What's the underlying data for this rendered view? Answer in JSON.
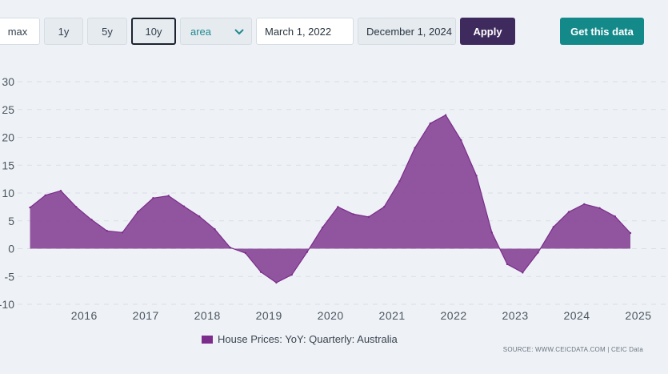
{
  "toolbar": {
    "range_buttons": [
      "max",
      "1y",
      "5y",
      "10y"
    ],
    "chart_type_value": "area",
    "date_from": "March 1, 2022",
    "date_to": "December 1, 2024",
    "apply_label": "Apply",
    "get_data_label": "Get this data"
  },
  "legend": {
    "label": "House Prices: YoY: Quarterly: Australia"
  },
  "source": "SOURCE: WWW.CEICDATA.COM | CEIC Data",
  "colors": {
    "area_fill": "#8b4c9a",
    "area_stroke": "#7c2c8a",
    "accent": "#14898a",
    "apply": "#3f2a5e"
  },
  "chart_data": {
    "type": "area",
    "title": "",
    "xlabel": "",
    "ylabel": "",
    "ylim": [
      -10,
      30
    ],
    "xlim": [
      2015.1,
      2025.0
    ],
    "yticks": [
      "30",
      "25",
      "20",
      "15",
      "10",
      "5",
      "0",
      "-5",
      "-10"
    ],
    "xticks": [
      "2016",
      "2017",
      "2018",
      "2019",
      "2020",
      "2021",
      "2022",
      "2023",
      "2024",
      "2025"
    ],
    "grid": true,
    "legend_position": "bottom",
    "series": [
      {
        "name": "House Prices: YoY: Quarterly: Australia",
        "x": [
          2015.12,
          2015.37,
          2015.62,
          2015.87,
          2016.12,
          2016.37,
          2016.62,
          2016.87,
          2017.12,
          2017.37,
          2017.62,
          2017.87,
          2018.12,
          2018.37,
          2018.62,
          2018.87,
          2019.12,
          2019.37,
          2019.62,
          2019.87,
          2020.12,
          2020.37,
          2020.62,
          2020.87,
          2021.12,
          2021.37,
          2021.62,
          2021.87,
          2022.12,
          2022.37,
          2022.62,
          2022.87,
          2023.12,
          2023.37,
          2023.62,
          2023.87,
          2024.12,
          2024.37,
          2024.62,
          2024.87
        ],
        "values": [
          7.4,
          9.6,
          10.4,
          7.5,
          5.2,
          3.2,
          2.9,
          6.6,
          9.1,
          9.5,
          7.6,
          5.8,
          3.5,
          0.2,
          -0.8,
          -4.2,
          -6.1,
          -4.7,
          -0.6,
          3.8,
          7.5,
          6.2,
          5.7,
          7.5,
          12.1,
          18.1,
          22.5,
          24.0,
          19.5,
          13.1,
          2.9,
          -2.8,
          -4.3,
          -0.7,
          3.9,
          6.6,
          8.0,
          7.3,
          5.8,
          2.8
        ]
      }
    ]
  }
}
